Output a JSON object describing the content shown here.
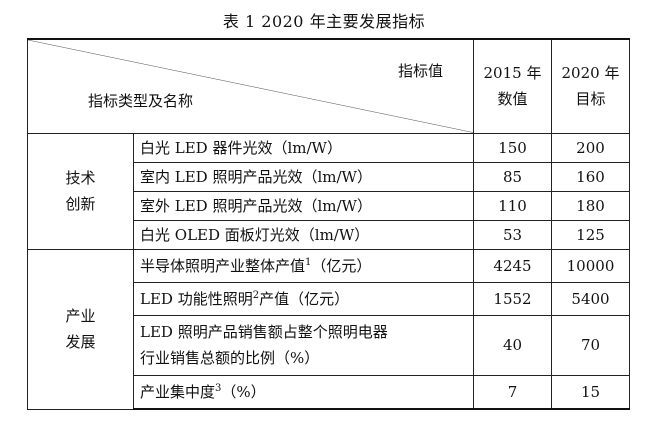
{
  "caption": "表 1   2020 年主要发展指标",
  "header": {
    "diag_top": "指标值",
    "diag_bottom": "指标类型及名称",
    "col2015_a": "2015 年",
    "col2015_b": "数值",
    "col2020_a": "2020 年",
    "col2020_b": "目标"
  },
  "groups": [
    {
      "name_a": "技术",
      "name_b": "创新",
      "rows": [
        {
          "label": "白光 LED 器件光效（lm/W）",
          "v2015": "150",
          "v2020": "200"
        },
        {
          "label": "室内 LED 照明产品光效（lm/W）",
          "v2015": "85",
          "v2020": "160"
        },
        {
          "label": "室外 LED 照明产品光效（lm/W）",
          "v2015": "110",
          "v2020": "180"
        },
        {
          "label": "白光 OLED 面板灯光效（lm/W）",
          "v2015": "53",
          "v2020": "125"
        }
      ]
    },
    {
      "name_a": "产业",
      "name_b": "发展",
      "rows": [
        {
          "label_a": "半导体照明产业整体产值",
          "sup": "1",
          "label_b": "（亿元）",
          "v2015": "4245",
          "v2020": "10000"
        },
        {
          "label_a": "LED 功能性照明",
          "sup": "2",
          "label_b": "产值（亿元）",
          "v2015": "1552",
          "v2020": "5400"
        },
        {
          "label_a": "LED 照明产品销售额占整个照明电器",
          "label_b": "行业销售总额的比例（%）",
          "v2015": "40",
          "v2020": "70"
        },
        {
          "label_a": "产业集中度",
          "sup": "3",
          "label_b": "（%）",
          "v2015": "7",
          "v2020": "15"
        }
      ]
    }
  ]
}
